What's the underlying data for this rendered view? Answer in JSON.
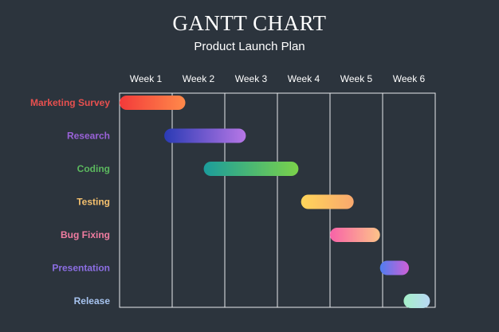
{
  "title": "GANTT CHART",
  "subtitle": "Product Launch Plan",
  "chart_data": {
    "type": "gantt",
    "title": "GANTT CHART",
    "subtitle": "Product Launch Plan",
    "weeks": [
      "Week 1",
      "Week 2",
      "Week 3",
      "Week 4",
      "Week 5",
      "Week 6"
    ],
    "grid": true,
    "tasks": [
      {
        "name": "Marketing Survey",
        "start": 0.0,
        "end": 1.25,
        "label_color": "#e8504f",
        "colors": [
          "#f33a3a",
          "#ff8a4a"
        ]
      },
      {
        "name": "Research",
        "start": 0.85,
        "end": 2.4,
        "label_color": "#9a62d8",
        "colors": [
          "#2a3bb5",
          "#b777e6"
        ]
      },
      {
        "name": "Coding",
        "start": 1.6,
        "end": 3.4,
        "label_color": "#5bb85e",
        "colors": [
          "#1b9c9c",
          "#7bd24a"
        ]
      },
      {
        "name": "Testing",
        "start": 3.45,
        "end": 4.45,
        "label_color": "#f4c06e",
        "colors": [
          "#ffd55a",
          "#f9a86e"
        ]
      },
      {
        "name": "Bug Fixing",
        "start": 4.0,
        "end": 4.95,
        "label_color": "#f07ca0",
        "colors": [
          "#f862a8",
          "#fdc389"
        ]
      },
      {
        "name": "Presentation",
        "start": 4.95,
        "end": 5.5,
        "label_color": "#8c6ee3",
        "colors": [
          "#4e7ef0",
          "#d05fd6"
        ]
      },
      {
        "name": "Release",
        "start": 5.4,
        "end": 5.9,
        "label_color": "#a7c4f0",
        "colors": [
          "#a5f0c8",
          "#b9d8f5"
        ]
      }
    ]
  }
}
